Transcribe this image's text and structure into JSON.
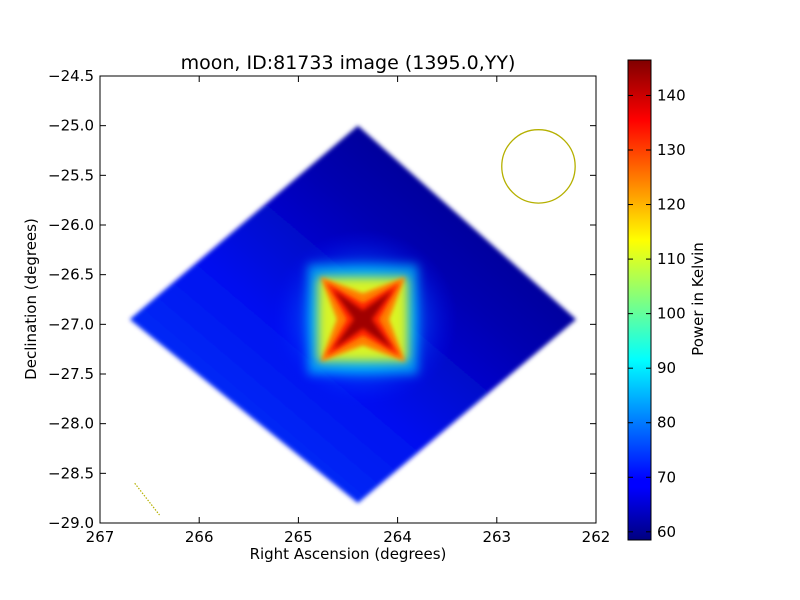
{
  "chart_data": {
    "type": "heatmap",
    "title": "moon, ID:81733 image (1395.0,YY)",
    "xlabel": "Right Ascension (degrees)",
    "ylabel": "Declination (degrees)",
    "xlim": [
      267,
      262
    ],
    "ylim": [
      -29.0,
      -24.5
    ],
    "x_ticks": [
      267,
      266,
      265,
      264,
      263,
      262
    ],
    "x_tick_labels": [
      "267",
      "266",
      "265",
      "264",
      "263",
      "262"
    ],
    "y_ticks": [
      -24.5,
      -25.0,
      -25.5,
      -26.0,
      -26.5,
      -27.0,
      -27.5,
      -28.0,
      -28.5,
      -29.0
    ],
    "y_tick_labels": [
      "−24.5",
      "−25.0",
      "−25.5",
      "−26.0",
      "−26.5",
      "−27.0",
      "−27.5",
      "−28.0",
      "−28.5",
      "−29.0"
    ],
    "colormap": "jet",
    "colorbar": {
      "label": "Power in Kelvin",
      "min": 58.5,
      "max": 146.5,
      "ticks": [
        60,
        70,
        80,
        90,
        100,
        110,
        120,
        130,
        140
      ],
      "tick_labels": [
        "60",
        "70",
        "80",
        "90",
        "100",
        "110",
        "120",
        "130",
        "140"
      ]
    },
    "image_footprint": {
      "shape": "diamond",
      "vertices_radec": [
        [
          264.4,
          -25.0
        ],
        [
          262.2,
          -26.95
        ],
        [
          264.4,
          -28.8
        ],
        [
          266.7,
          -26.95
        ]
      ],
      "background_kelvin": 62,
      "gradient_high_kelvin": 76
    },
    "source": {
      "ra": 264.35,
      "dec": -26.95,
      "peak_kelvin": 146,
      "shape": "four-pointed cross"
    },
    "beam_circle": {
      "ra": 262.58,
      "dec": -25.41,
      "radius_deg": 0.37,
      "color": "#b5b000"
    },
    "annotation_line": {
      "from": [
        266.65,
        -28.6
      ],
      "to": [
        266.4,
        -28.92
      ],
      "color": "#b5b000"
    }
  }
}
